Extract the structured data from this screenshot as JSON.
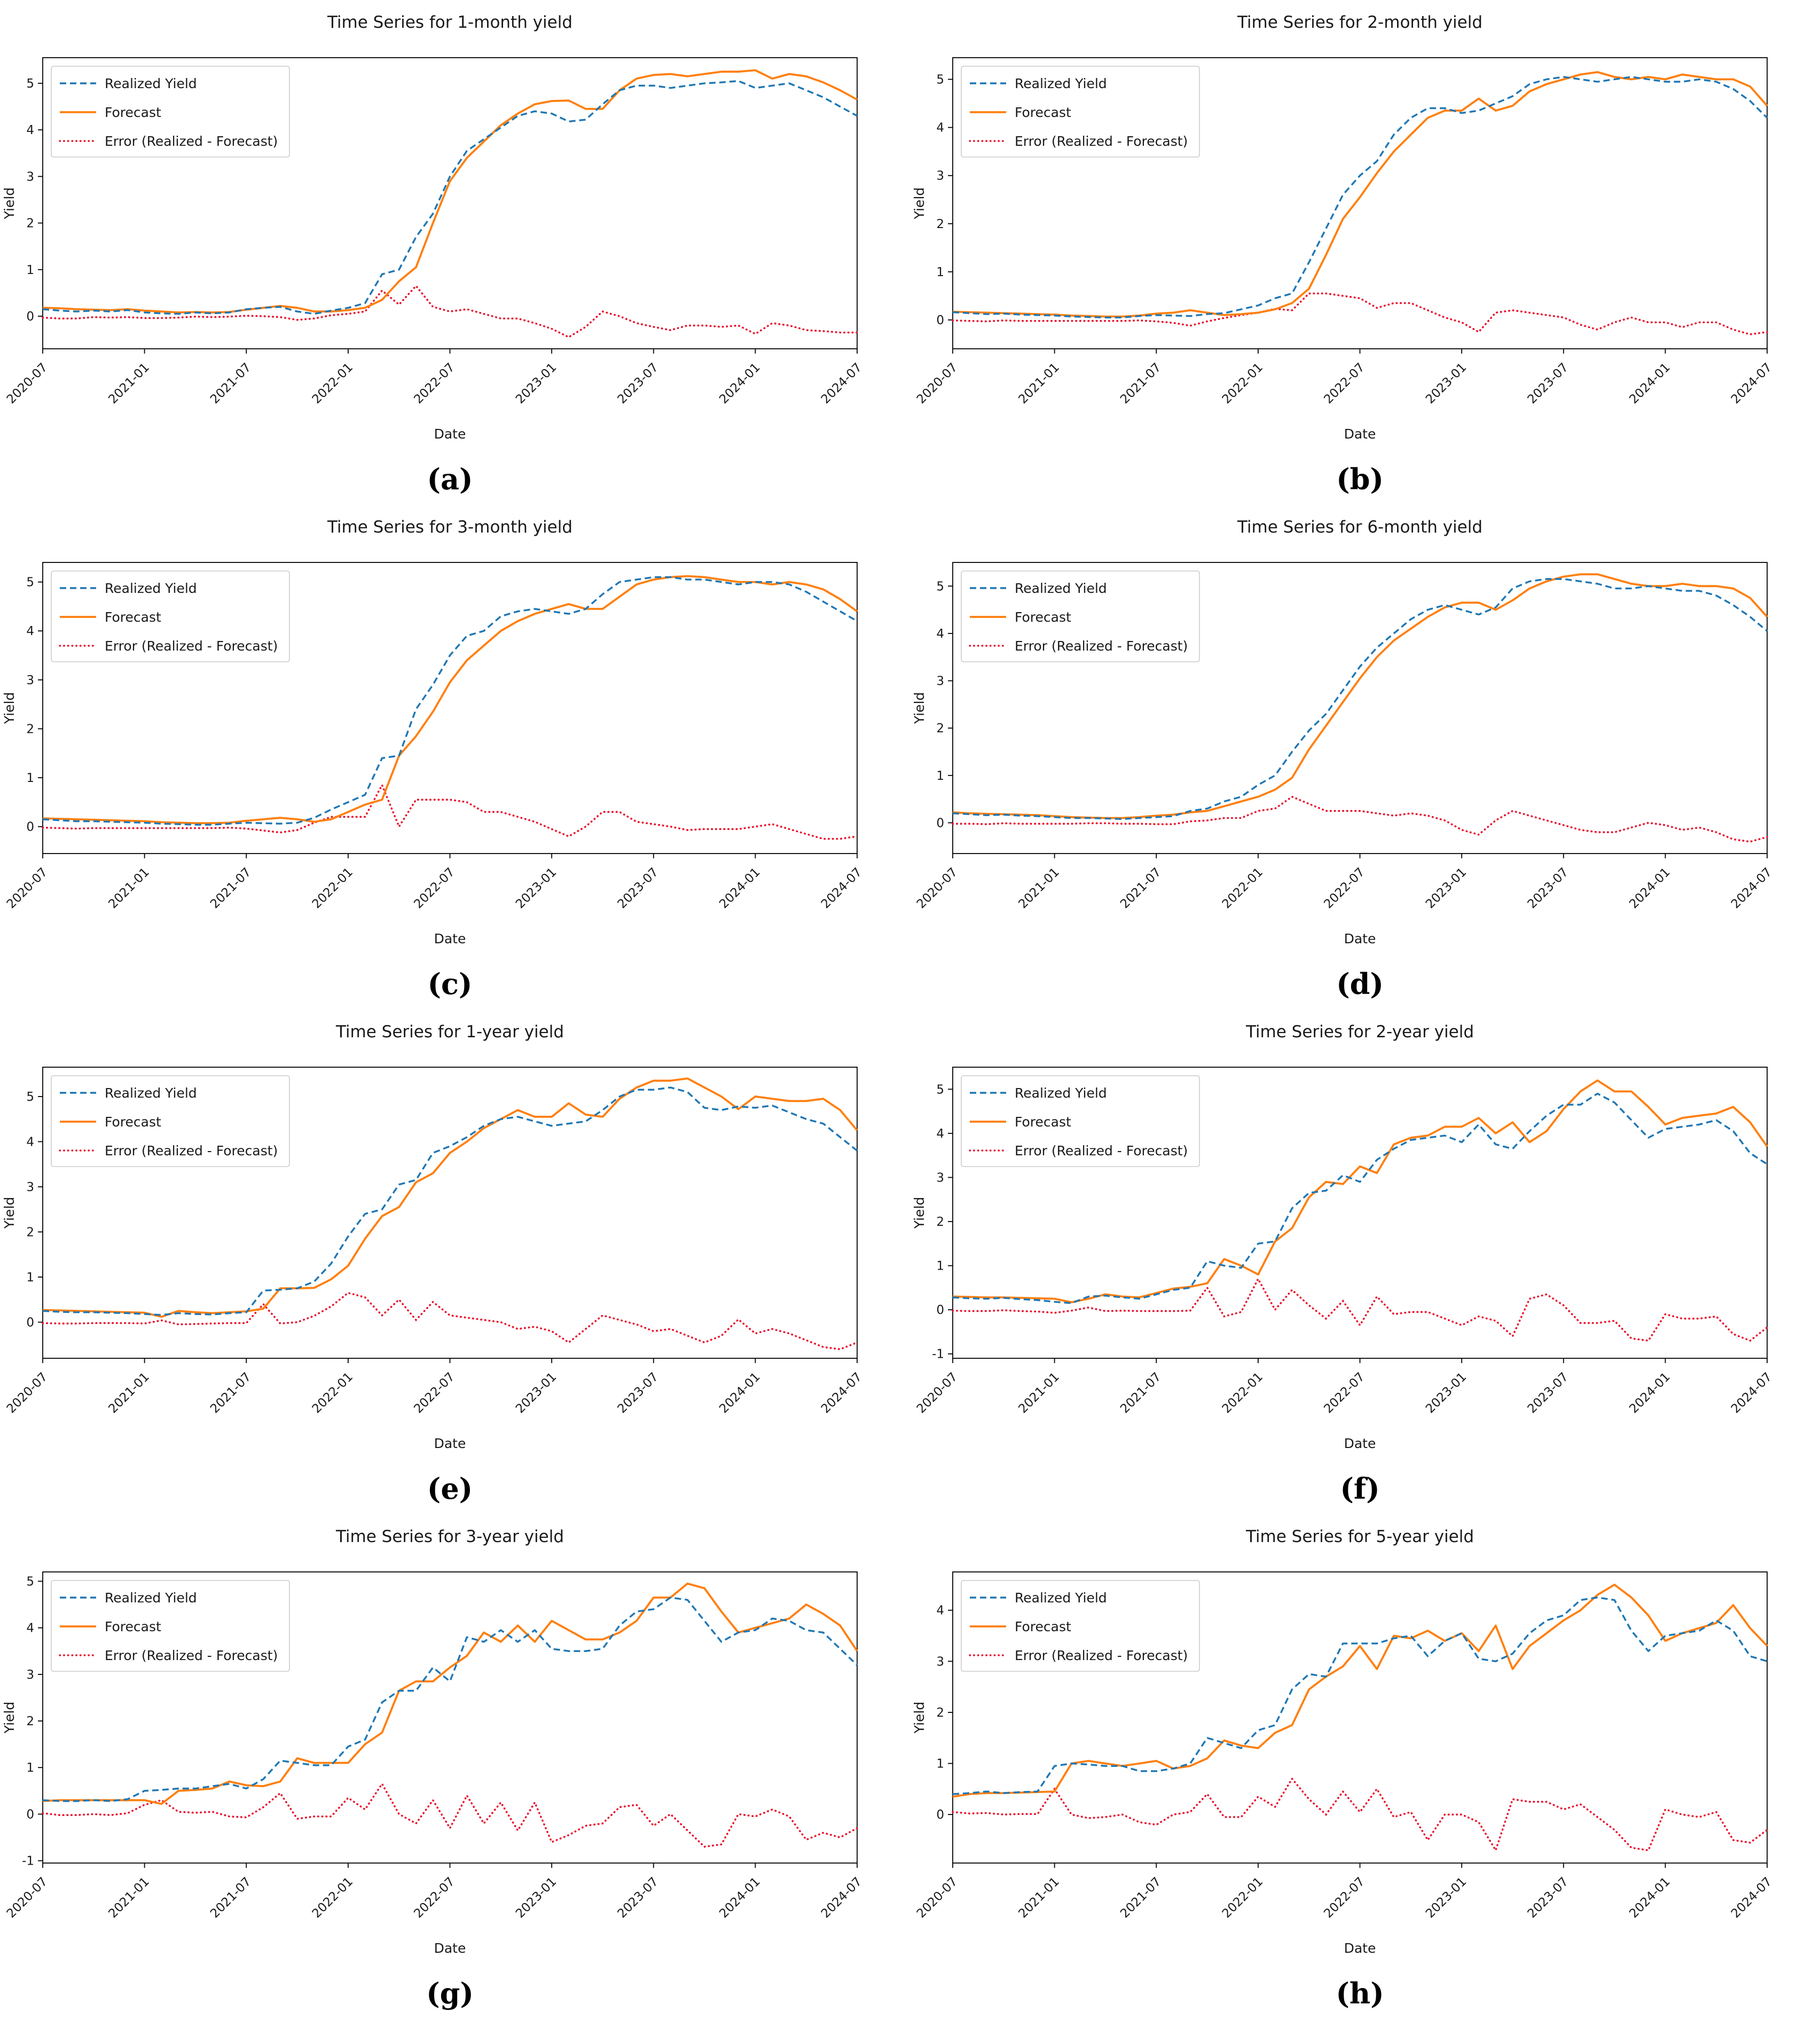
{
  "figure": {
    "background": "#ffffff",
    "grid": "4 rows x 2 columns",
    "text_color": "#1a1a1a",
    "spine_color": "#000000"
  },
  "common": {
    "xlabel": "Date",
    "ylabel": "Yield",
    "x_start": "2020-07",
    "x_end": "2024-07",
    "frequency": "monthly",
    "n_points": 49,
    "x_tick_labels": [
      "2020-07",
      "2021-01",
      "2021-07",
      "2022-01",
      "2022-07",
      "2023-01",
      "2023-07",
      "2024-01",
      "2024-07"
    ],
    "x_tick_indices": [
      0,
      6,
      12,
      18,
      24,
      30,
      36,
      42,
      48
    ],
    "error_definition": "Error series = Realized Yield minus Forecast, computed point-wise",
    "legend": [
      {
        "key": "realized",
        "label": "Realized Yield",
        "color": "#1f77b4",
        "style": "dashed"
      },
      {
        "key": "forecast",
        "label": "Forecast",
        "color": "#ff7f0e",
        "style": "solid"
      },
      {
        "key": "error",
        "label": "Error (Realized - Forecast)",
        "color": "#e8112d",
        "style": "dotted"
      }
    ]
  },
  "chart_data": [
    {
      "id": "a",
      "type": "line",
      "caption": "(a)",
      "title": "Time Series for 1-month yield",
      "yticks": [
        0,
        1,
        2,
        3,
        4,
        5
      ],
      "ylim": [
        -0.7,
        5.55
      ],
      "series": {
        "realized": [
          0.15,
          0.12,
          0.1,
          0.12,
          0.1,
          0.13,
          0.08,
          0.06,
          0.05,
          0.08,
          0.06,
          0.08,
          0.15,
          0.18,
          0.2,
          0.1,
          0.05,
          0.12,
          0.18,
          0.28,
          0.9,
          1.0,
          1.7,
          2.2,
          3.0,
          3.55,
          3.8,
          4.05,
          4.3,
          4.4,
          4.35,
          4.18,
          4.22,
          4.55,
          4.85,
          4.95,
          4.95,
          4.9,
          4.95,
          5.0,
          5.02,
          5.05,
          4.9,
          4.95,
          5.0,
          4.85,
          4.7,
          4.5,
          4.3
        ],
        "forecast": [
          0.18,
          0.17,
          0.15,
          0.14,
          0.13,
          0.15,
          0.12,
          0.1,
          0.08,
          0.09,
          0.08,
          0.09,
          0.14,
          0.18,
          0.22,
          0.18,
          0.1,
          0.1,
          0.13,
          0.18,
          0.35,
          0.75,
          1.05,
          2.0,
          2.9,
          3.4,
          3.75,
          4.1,
          4.35,
          4.55,
          4.62,
          4.63,
          4.45,
          4.45,
          4.85,
          5.1,
          5.18,
          5.2,
          5.15,
          5.2,
          5.25,
          5.25,
          5.28,
          5.1,
          5.2,
          5.15,
          5.02,
          4.85,
          4.65
        ]
      }
    },
    {
      "id": "b",
      "type": "line",
      "caption": "(b)",
      "title": "Time Series for 2-month yield",
      "yticks": [
        0,
        1,
        2,
        3,
        4,
        5
      ],
      "ylim": [
        -0.6,
        5.45
      ],
      "series": {
        "realized": [
          0.16,
          0.14,
          0.12,
          0.13,
          0.11,
          0.1,
          0.09,
          0.07,
          0.06,
          0.05,
          0.05,
          0.08,
          0.1,
          0.09,
          0.08,
          0.12,
          0.14,
          0.22,
          0.3,
          0.45,
          0.55,
          1.2,
          1.9,
          2.6,
          3.0,
          3.3,
          3.85,
          4.2,
          4.4,
          4.4,
          4.3,
          4.35,
          4.5,
          4.65,
          4.9,
          5.0,
          5.05,
          5.0,
          4.95,
          5.0,
          5.05,
          5.0,
          4.95,
          4.95,
          5.0,
          4.95,
          4.8,
          4.55,
          4.2
        ],
        "forecast": [
          0.17,
          0.16,
          0.15,
          0.14,
          0.13,
          0.12,
          0.11,
          0.09,
          0.08,
          0.07,
          0.07,
          0.09,
          0.13,
          0.15,
          0.2,
          0.15,
          0.1,
          0.12,
          0.15,
          0.22,
          0.35,
          0.65,
          1.35,
          2.1,
          2.55,
          3.05,
          3.5,
          3.85,
          4.2,
          4.35,
          4.35,
          4.6,
          4.35,
          4.45,
          4.75,
          4.9,
          5.0,
          5.1,
          5.15,
          5.05,
          5.0,
          5.05,
          5.0,
          5.1,
          5.05,
          5.0,
          5.0,
          4.85,
          4.45
        ]
      }
    },
    {
      "id": "c",
      "type": "line",
      "caption": "(c)",
      "title": "Time Series for 3-month yield",
      "yticks": [
        0,
        1,
        2,
        3,
        4,
        5
      ],
      "ylim": [
        -0.55,
        5.4
      ],
      "series": {
        "realized": [
          0.15,
          0.13,
          0.11,
          0.11,
          0.1,
          0.09,
          0.08,
          0.06,
          0.05,
          0.04,
          0.04,
          0.06,
          0.08,
          0.07,
          0.06,
          0.08,
          0.18,
          0.35,
          0.5,
          0.65,
          1.4,
          1.45,
          2.4,
          2.9,
          3.5,
          3.9,
          4.0,
          4.3,
          4.4,
          4.45,
          4.4,
          4.35,
          4.45,
          4.75,
          5.0,
          5.05,
          5.1,
          5.1,
          5.05,
          5.05,
          5.0,
          4.95,
          5.0,
          5.0,
          4.95,
          4.8,
          4.6,
          4.4,
          4.2
        ],
        "forecast": [
          0.17,
          0.16,
          0.15,
          0.14,
          0.13,
          0.12,
          0.11,
          0.09,
          0.08,
          0.07,
          0.07,
          0.08,
          0.12,
          0.15,
          0.18,
          0.15,
          0.1,
          0.15,
          0.3,
          0.45,
          0.55,
          1.45,
          1.85,
          2.35,
          2.95,
          3.4,
          3.7,
          4.0,
          4.2,
          4.35,
          4.45,
          4.55,
          4.45,
          4.45,
          4.7,
          4.95,
          5.05,
          5.1,
          5.12,
          5.1,
          5.05,
          5.0,
          5.0,
          4.95,
          5.0,
          4.95,
          4.85,
          4.65,
          4.4
        ]
      }
    },
    {
      "id": "d",
      "type": "line",
      "caption": "(d)",
      "title": "Time Series for 6-month yield",
      "yticks": [
        0,
        1,
        2,
        3,
        4,
        5
      ],
      "ylim": [
        -0.65,
        5.5
      ],
      "series": {
        "realized": [
          0.2,
          0.18,
          0.16,
          0.17,
          0.15,
          0.14,
          0.12,
          0.1,
          0.1,
          0.09,
          0.08,
          0.1,
          0.12,
          0.14,
          0.25,
          0.3,
          0.45,
          0.55,
          0.8,
          1.0,
          1.5,
          1.95,
          2.3,
          2.8,
          3.3,
          3.7,
          4.0,
          4.3,
          4.5,
          4.6,
          4.5,
          4.4,
          4.55,
          4.95,
          5.1,
          5.15,
          5.15,
          5.1,
          5.05,
          4.95,
          4.95,
          5.0,
          4.95,
          4.9,
          4.9,
          4.8,
          4.6,
          4.35,
          4.05
        ],
        "forecast": [
          0.22,
          0.2,
          0.19,
          0.18,
          0.17,
          0.16,
          0.14,
          0.12,
          0.11,
          0.1,
          0.1,
          0.12,
          0.15,
          0.17,
          0.22,
          0.25,
          0.35,
          0.45,
          0.55,
          0.7,
          0.95,
          1.55,
          2.05,
          2.55,
          3.05,
          3.5,
          3.85,
          4.1,
          4.35,
          4.55,
          4.65,
          4.65,
          4.5,
          4.7,
          4.95,
          5.1,
          5.2,
          5.25,
          5.25,
          5.15,
          5.05,
          5.0,
          5.0,
          5.05,
          5.0,
          5.0,
          4.95,
          4.75,
          4.35
        ]
      }
    },
    {
      "id": "e",
      "type": "line",
      "caption": "(e)",
      "title": "Time Series for 1-year yield",
      "yticks": [
        0,
        1,
        2,
        3,
        4,
        5
      ],
      "ylim": [
        -0.8,
        5.65
      ],
      "series": {
        "realized": [
          0.25,
          0.23,
          0.22,
          0.22,
          0.21,
          0.2,
          0.18,
          0.16,
          0.2,
          0.18,
          0.17,
          0.2,
          0.22,
          0.7,
          0.72,
          0.75,
          0.9,
          1.3,
          1.9,
          2.4,
          2.5,
          3.05,
          3.15,
          3.75,
          3.9,
          4.1,
          4.35,
          4.5,
          4.55,
          4.45,
          4.35,
          4.4,
          4.45,
          4.7,
          5.0,
          5.15,
          5.15,
          5.2,
          5.1,
          4.75,
          4.7,
          4.78,
          4.75,
          4.8,
          4.65,
          4.5,
          4.4,
          4.1,
          3.8
        ],
        "forecast": [
          0.27,
          0.26,
          0.25,
          0.24,
          0.23,
          0.22,
          0.21,
          0.12,
          0.25,
          0.22,
          0.2,
          0.22,
          0.24,
          0.3,
          0.75,
          0.75,
          0.76,
          0.95,
          1.25,
          1.85,
          2.35,
          2.55,
          3.1,
          3.3,
          3.75,
          4.0,
          4.3,
          4.5,
          4.7,
          4.55,
          4.55,
          4.85,
          4.6,
          4.55,
          4.95,
          5.2,
          5.35,
          5.35,
          5.4,
          5.2,
          5.0,
          4.72,
          5.0,
          4.95,
          4.9,
          4.9,
          4.95,
          4.7,
          4.25
        ]
      }
    },
    {
      "id": "f",
      "type": "line",
      "caption": "(f)",
      "title": "Time Series for 2-year yield",
      "yticks": [
        -1,
        0,
        1,
        2,
        3,
        4,
        5
      ],
      "ylim": [
        -1.1,
        5.5
      ],
      "series": {
        "realized": [
          0.28,
          0.26,
          0.25,
          0.27,
          0.24,
          0.22,
          0.18,
          0.15,
          0.3,
          0.32,
          0.28,
          0.25,
          0.35,
          0.45,
          0.5,
          1.1,
          1.0,
          0.95,
          1.5,
          1.55,
          2.3,
          2.65,
          2.7,
          3.05,
          2.9,
          3.4,
          3.65,
          3.85,
          3.9,
          3.95,
          3.8,
          4.2,
          3.75,
          3.65,
          4.05,
          4.4,
          4.65,
          4.65,
          4.9,
          4.7,
          4.3,
          3.9,
          4.1,
          4.15,
          4.2,
          4.3,
          4.05,
          3.55,
          3.3
        ],
        "forecast": [
          0.3,
          0.29,
          0.28,
          0.28,
          0.27,
          0.26,
          0.25,
          0.17,
          0.25,
          0.35,
          0.3,
          0.28,
          0.38,
          0.48,
          0.52,
          0.6,
          1.15,
          1.0,
          0.8,
          1.55,
          1.85,
          2.55,
          2.9,
          2.85,
          3.25,
          3.1,
          3.75,
          3.9,
          3.95,
          4.15,
          4.15,
          4.35,
          4.0,
          4.25,
          3.8,
          4.05,
          4.55,
          4.95,
          5.2,
          4.95,
          4.95,
          4.6,
          4.2,
          4.35,
          4.4,
          4.45,
          4.6,
          4.25,
          3.7
        ]
      }
    },
    {
      "id": "g",
      "type": "line",
      "caption": "(g)",
      "title": "Time Series for 3-year yield",
      "yticks": [
        -1,
        0,
        1,
        2,
        3,
        4,
        5
      ],
      "ylim": [
        -1.05,
        5.2
      ],
      "series": {
        "realized": [
          0.3,
          0.28,
          0.28,
          0.3,
          0.28,
          0.32,
          0.5,
          0.52,
          0.55,
          0.55,
          0.6,
          0.65,
          0.55,
          0.75,
          1.15,
          1.1,
          1.05,
          1.05,
          1.45,
          1.6,
          2.4,
          2.65,
          2.65,
          3.15,
          2.85,
          3.8,
          3.7,
          3.95,
          3.7,
          3.95,
          3.55,
          3.5,
          3.5,
          3.55,
          4.05,
          4.35,
          4.4,
          4.65,
          4.6,
          4.15,
          3.7,
          3.9,
          3.95,
          4.2,
          4.15,
          3.95,
          3.9,
          3.55,
          3.2
        ],
        "forecast": [
          0.28,
          0.3,
          0.3,
          0.3,
          0.3,
          0.3,
          0.3,
          0.22,
          0.5,
          0.52,
          0.55,
          0.7,
          0.62,
          0.6,
          0.7,
          1.2,
          1.1,
          1.1,
          1.1,
          1.5,
          1.75,
          2.65,
          2.85,
          2.85,
          3.15,
          3.4,
          3.9,
          3.7,
          4.05,
          3.7,
          4.15,
          3.95,
          3.75,
          3.75,
          3.9,
          4.15,
          4.65,
          4.65,
          4.95,
          4.85,
          4.35,
          3.9,
          4.0,
          4.1,
          4.2,
          4.5,
          4.3,
          4.05,
          3.5
        ]
      }
    },
    {
      "id": "h",
      "type": "line",
      "caption": "(h)",
      "title": "Time Series for 5-year yield",
      "yticks": [
        0,
        1,
        2,
        3,
        4
      ],
      "ylim": [
        -0.95,
        4.75
      ],
      "series": {
        "realized": [
          0.4,
          0.42,
          0.45,
          0.42,
          0.44,
          0.45,
          0.95,
          1.0,
          0.98,
          0.95,
          0.95,
          0.85,
          0.85,
          0.9,
          1.0,
          1.5,
          1.4,
          1.3,
          1.65,
          1.75,
          2.45,
          2.75,
          2.7,
          3.35,
          3.35,
          3.35,
          3.45,
          3.5,
          3.1,
          3.4,
          3.55,
          3.05,
          3.0,
          3.15,
          3.55,
          3.8,
          3.9,
          4.2,
          4.25,
          4.2,
          3.6,
          3.2,
          3.5,
          3.55,
          3.6,
          3.8,
          3.6,
          3.1,
          3.0
        ],
        "forecast": [
          0.35,
          0.4,
          0.42,
          0.42,
          0.43,
          0.44,
          0.45,
          1.0,
          1.05,
          1.0,
          0.95,
          1.0,
          1.05,
          0.9,
          0.95,
          1.1,
          1.45,
          1.35,
          1.3,
          1.6,
          1.75,
          2.45,
          2.7,
          2.9,
          3.3,
          2.85,
          3.5,
          3.45,
          3.6,
          3.4,
          3.55,
          3.2,
          3.7,
          2.85,
          3.3,
          3.55,
          3.8,
          4.0,
          4.3,
          4.5,
          4.25,
          3.9,
          3.4,
          3.55,
          3.65,
          3.75,
          4.1,
          3.65,
          3.3
        ]
      }
    }
  ]
}
